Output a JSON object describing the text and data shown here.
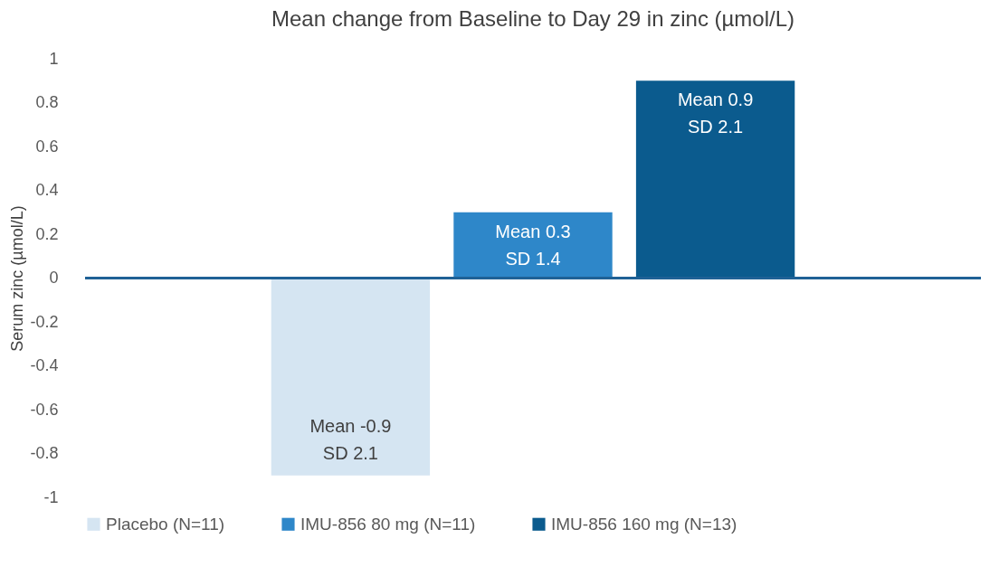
{
  "chart_data": {
    "type": "bar",
    "title": "Mean change from Baseline to Day 29 in zinc (µmol/L)",
    "ylabel": "Serum zinc (µmol/L)",
    "categories": [
      null
    ],
    "series": [
      {
        "name": "Placebo (N=11)",
        "color": "#d5e5f2",
        "values": [
          -0.9
        ],
        "value_labels": [
          "Mean -0.9\nSD 2.1"
        ]
      },
      {
        "name": "IMU-856 80 mg (N=11)",
        "color": "#2e87c9",
        "values": [
          0.3
        ],
        "value_labels": [
          "Mean 0.3\nSD 1.4"
        ]
      },
      {
        "name": "IMU-856 160 mg (N=13)",
        "color": "#0b5b8e",
        "values": [
          0.9
        ],
        "value_labels": [
          "Mean 0.9\nSD 2.1"
        ]
      }
    ],
    "ylim": [
      -1,
      1
    ],
    "yticks": [
      -1,
      -0.8,
      -0.6,
      -0.4,
      -0.2,
      0,
      0.2,
      0.4,
      0.6,
      0.8,
      1
    ],
    "ref_lines": [
      {
        "axis": "y",
        "value": 0,
        "color": "#1f6196"
      }
    ],
    "grid": false,
    "legend": "bottom"
  }
}
